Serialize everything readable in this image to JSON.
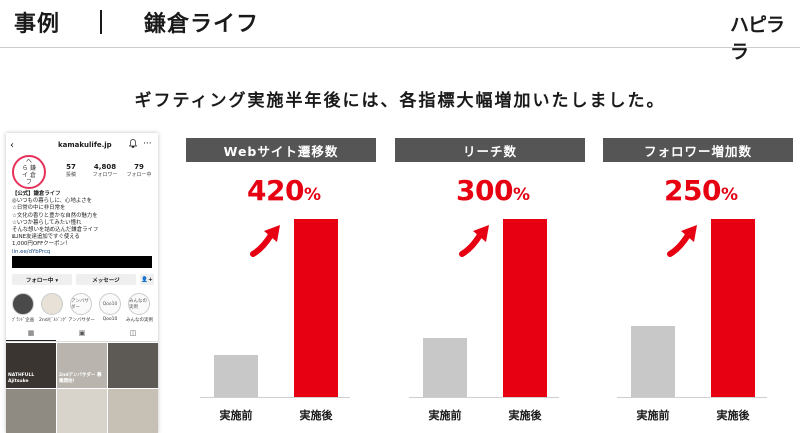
{
  "header": {
    "title": "事例",
    "client": "鎌倉ライフ",
    "logo": "ハピララ"
  },
  "subheading": "ギフティング実施半年後には、各指標大幅増加いたしました。",
  "instagram": {
    "back_glyph": "‹",
    "username": "kamakulife.jp",
    "bell_glyph": "♫",
    "more_glyph": "···",
    "avatar_text": [
      "へ",
      "ら 鎌",
      "イ 倉",
      "フ"
    ],
    "stats": [
      {
        "value": "57",
        "label": "投稿"
      },
      {
        "value": "4,808",
        "label": "フォロワー"
      },
      {
        "value": "79",
        "label": "フォロー中"
      }
    ],
    "bio": [
      "【公式】鎌倉ライフ",
      "◎いつもの暮らしに、心地よさを",
      "☆日常の中に非日常を",
      "☆文化の香りと豊かな自然の魅力を",
      "☆いつか暮らしてみたい憧れ",
      "そんな想いを詰め込んだ鎌倉ライフ",
      "ℹLINE友達追加ですぐ使える",
      "1,000円OFFクーポン！",
      "lin.ee/dYbPrcq"
    ],
    "buttons": {
      "follow": "フォロー中 ▾",
      "message": "メッセージ",
      "add": "👤+"
    },
    "highlights": [
      {
        "label": "ﾌﾞﾗﾝﾄﾞ企画",
        "text": ""
      },
      {
        "label": "2nd/ﾋﾞﾙｼﾞﾝｸﾞ",
        "text": ""
      },
      {
        "label": "アンバサダー",
        "text": "アンバサダー"
      },
      {
        "label": "Qoo10",
        "text": "Qoo10"
      },
      {
        "label": "みんなの実例",
        "text": "みんなの実例"
      }
    ],
    "tab_icons": [
      "▦",
      "▣",
      "◫"
    ],
    "tiles": [
      {
        "caption": "NATHFULL Ajitsuke",
        "bg": "#3b3531"
      },
      {
        "caption": "2ndアンバサダー 募集開始！",
        "bg": "#b9b5ae"
      },
      {
        "caption": "",
        "bg": "#5d5a56"
      },
      {
        "caption": "",
        "bg": "#8f8a82"
      },
      {
        "caption": "",
        "bg": "#d8d3cb"
      },
      {
        "caption": "",
        "bg": "#c7c0b5"
      }
    ]
  },
  "colors": {
    "accent": "#e60012",
    "before_bar": "#c8c8c8",
    "panel_header": "#555555"
  },
  "panels": [
    {
      "title": "Webサイト遷移数",
      "percent": "420",
      "unit": "%",
      "before_label": "実施前",
      "after_label": "実施後",
      "before_value": 1.0,
      "after_value": 4.2
    },
    {
      "title": "リーチ数",
      "percent": "300",
      "unit": "%",
      "before_label": "実施前",
      "after_label": "実施後",
      "before_value": 1.0,
      "after_value": 3.0
    },
    {
      "title": "フォロワー増加数",
      "percent": "250",
      "unit": "%",
      "before_label": "実施前",
      "after_label": "実施後",
      "before_value": 1.0,
      "after_value": 2.5
    }
  ]
}
